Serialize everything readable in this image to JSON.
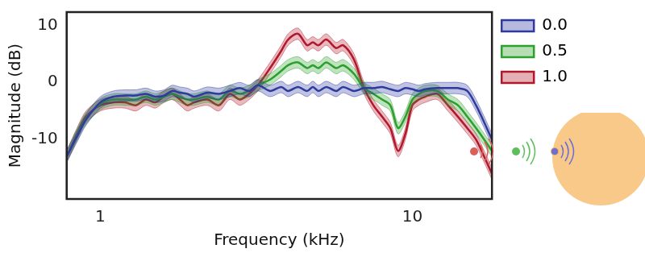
{
  "chart_data": {
    "type": "line",
    "x_label": "Frequency (kHz)",
    "y_label": "Magnitude (dB)",
    "log": "x",
    "grid": false,
    "legend": "right",
    "xlim": [
      0.78,
      18
    ],
    "xticks": [
      1,
      10
    ],
    "ylim": [
      -20.4,
      12.3
    ],
    "yticks": [
      -10,
      0,
      10
    ],
    "x": [
      0.78,
      0.85,
      0.9,
      1.0,
      1.1,
      1.2,
      1.3,
      1.4,
      1.5,
      1.6,
      1.7,
      1.8,
      1.9,
      2.0,
      2.2,
      2.4,
      2.6,
      2.8,
      3.0,
      3.2,
      3.5,
      3.8,
      4.0,
      4.3,
      4.6,
      4.8,
      5.0,
      5.3,
      5.7,
      6.0,
      6.5,
      7.0,
      7.5,
      8.0,
      8.5,
      9.0,
      9.5,
      10,
      10.5,
      11,
      12,
      13,
      14,
      15,
      16,
      17,
      18
    ],
    "series": [
      {
        "name": "0.0",
        "color": "#2e3a9e",
        "error": 1.0,
        "values": [
          -13,
          -9,
          -6.5,
          -3.5,
          -2.5,
          -2.3,
          -2.3,
          -2,
          -2.5,
          -2.3,
          -1.5,
          -1.8,
          -2,
          -2.5,
          -1.8,
          -2,
          -1.5,
          -1,
          -1.5,
          -0.5,
          -1.5,
          -0.8,
          -1.5,
          -0.8,
          -1.5,
          -0.8,
          -1.5,
          -0.8,
          -1.5,
          -0.8,
          -1.5,
          -1,
          -1,
          -0.8,
          -1.2,
          -1.5,
          -1,
          -1.2,
          -1.5,
          -1.2,
          -1,
          -1,
          -1,
          -1.5,
          -4,
          -7,
          -10
        ]
      },
      {
        "name": "0.5",
        "color": "#2ca02c",
        "error": 1.0,
        "values": [
          -13,
          -8.7,
          -6.3,
          -3.8,
          -3,
          -3,
          -3,
          -2.5,
          -3,
          -2.5,
          -2,
          -2.5,
          -3,
          -3,
          -2.5,
          -3,
          -1.5,
          -2,
          -1.5,
          -0.5,
          0.5,
          2,
          3,
          3.5,
          2.5,
          3,
          2.5,
          3.5,
          2.5,
          3,
          1.5,
          -1,
          -2,
          -3,
          -4,
          -8,
          -6,
          -3,
          -2,
          -1.5,
          -1.5,
          -3,
          -4,
          -6,
          -8,
          -10,
          -12
        ]
      },
      {
        "name": "1.0",
        "color": "#b2182b",
        "error": 1.0,
        "values": [
          -13,
          -8.5,
          -6,
          -4,
          -3.5,
          -3.5,
          -4,
          -3,
          -3.5,
          -2.5,
          -2,
          -3,
          -4,
          -3.5,
          -3,
          -4,
          -2,
          -3,
          -2,
          -0.5,
          2.5,
          5.5,
          7.5,
          8.5,
          6.5,
          7,
          6.5,
          7.5,
          6,
          6.5,
          4,
          -1,
          -4,
          -6,
          -8,
          -12,
          -9,
          -4,
          -3,
          -2.5,
          -2,
          -4,
          -6,
          -8,
          -10,
          -13,
          -16
        ]
      }
    ]
  }
}
